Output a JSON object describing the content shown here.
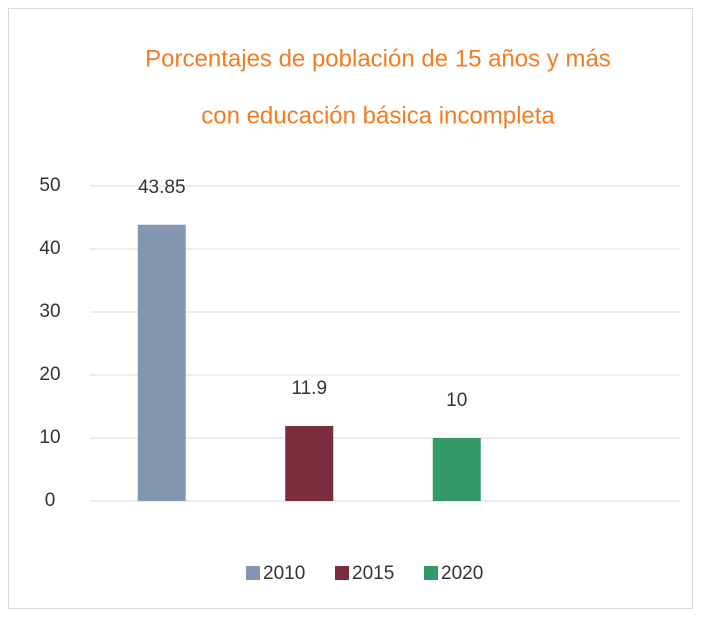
{
  "chart_data": {
    "type": "bar",
    "title": [
      "Porcentajes de población de 15 años y más",
      "con educación básica incompleta"
    ],
    "series": [
      {
        "name": "2010",
        "color": "#8497b0",
        "values": [
          43.85
        ]
      },
      {
        "name": "2015",
        "color": "#7b2c3e",
        "values": [
          11.9
        ]
      },
      {
        "name": "2020",
        "color": "#339966",
        "values": [
          10
        ]
      }
    ],
    "ylim": [
      0,
      50
    ],
    "yticks": [
      0,
      10,
      20,
      30,
      40,
      50
    ],
    "grid": true,
    "legend": "bottom"
  }
}
